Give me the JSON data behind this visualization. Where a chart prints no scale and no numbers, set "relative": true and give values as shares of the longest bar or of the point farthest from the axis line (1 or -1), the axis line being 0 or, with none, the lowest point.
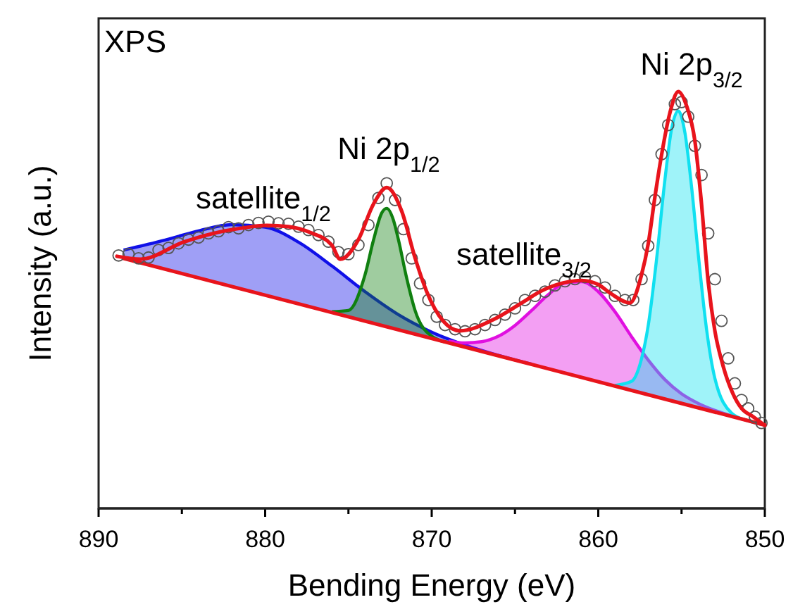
{
  "chart_data": {
    "type": "line",
    "relative": true,
    "xlabel": "Bending Energy (eV)",
    "ylabel": "Intensity (a.u.)",
    "xlim": [
      890,
      850
    ],
    "xticks": [
      890,
      {
        "value": 885,
        "label": null
      },
      880,
      {
        "value": 875,
        "label": null
      },
      870,
      {
        "value": 865,
        "label": null
      },
      860,
      {
        "value": 855,
        "label": null
      },
      850
    ],
    "annotations": [
      "XPS",
      "satellite$_{1/2}$",
      "Ni 2p$_{1/2}$",
      "satellite$_{3/2}$",
      "Ni 2p$_{3/2}$"
    ],
    "series": [
      {
        "type": "area",
        "color": "#1010e8",
        "x": [
          888.5,
          886,
          884,
          882,
          880,
          878,
          876,
          874,
          872,
          870,
          867,
          864
        ],
        "values": [
          0.62,
          0.644,
          0.666,
          0.681,
          0.675,
          0.639,
          0.582,
          0.52,
          0.465,
          0.423,
          0.379,
          0.346
        ]
      },
      {
        "type": "area",
        "color": "#108010",
        "x": [
          876,
          875,
          874,
          873.5,
          873,
          872.7,
          872.3,
          872,
          871.5,
          871,
          870,
          869
        ],
        "values": [
          0.472,
          0.475,
          0.561,
          0.643,
          0.709,
          0.72,
          0.692,
          0.645,
          0.552,
          0.475,
          0.413,
          0.398
        ]
      },
      {
        "type": "area",
        "color": "#e010e0",
        "x": [
          869,
          868,
          867,
          866,
          865,
          864,
          863,
          862,
          861,
          860,
          859,
          858,
          857,
          856,
          855,
          854,
          852,
          850
        ],
        "values": [
          0.402,
          0.397,
          0.4,
          0.413,
          0.439,
          0.475,
          0.513,
          0.541,
          0.544,
          0.52,
          0.472,
          0.412,
          0.356,
          0.309,
          0.275,
          0.252,
          0.222,
          0.2
        ]
      },
      {
        "type": "area",
        "color": "#10e0f0",
        "x": [
          859,
          858,
          857.5,
          857,
          856.5,
          856,
          855.6,
          855.2,
          854.8,
          854.4,
          854,
          853.5,
          853,
          852,
          851,
          850
        ],
        "values": [
          0.295,
          0.305,
          0.345,
          0.439,
          0.598,
          0.788,
          0.91,
          0.954,
          0.902,
          0.772,
          0.611,
          0.43,
          0.312,
          0.229,
          0.21,
          0.2
        ]
      },
      {
        "color": "#e8141c",
        "x": [
          888.5,
          850
        ],
        "values": [
          0.6,
          0.2
        ]
      },
      {
        "type": "scatter",
        "marker": "circle",
        "color": "#555555",
        "x": [
          888.8,
          888.2,
          887.6,
          887,
          886.4,
          885.8,
          885.2,
          884.6,
          884,
          883.4,
          882.8,
          882.2,
          881.6,
          881,
          880.4,
          879.8,
          879.2,
          878.6,
          878,
          877.4,
          876.8,
          876.2,
          875.6,
          875,
          874.4,
          873.8,
          873.2,
          872.7,
          872.2,
          871.7,
          871.2,
          870.7,
          870.2,
          869.7,
          869.2,
          868.6,
          868,
          867.4,
          866.8,
          866.2,
          865.6,
          865,
          864.4,
          863.8,
          863.2,
          862.6,
          862,
          861.4,
          860.8,
          860.2,
          859.6,
          859,
          858.4,
          857.9,
          857.4,
          857,
          856.6,
          856.2,
          855.8,
          855.4,
          855,
          854.6,
          854.2,
          853.8,
          853.4,
          853,
          852.6,
          852.2,
          851.8,
          851.4,
          851,
          850.6,
          850.2
        ],
        "values": [
          0.607,
          0.61,
          0.6,
          0.602,
          0.62,
          0.625,
          0.636,
          0.645,
          0.65,
          0.66,
          0.665,
          0.675,
          0.672,
          0.68,
          0.685,
          0.688,
          0.684,
          0.683,
          0.676,
          0.668,
          0.656,
          0.64,
          0.615,
          0.61,
          0.632,
          0.68,
          0.745,
          0.78,
          0.74,
          0.67,
          0.6,
          0.54,
          0.5,
          0.46,
          0.44,
          0.43,
          0.425,
          0.43,
          0.44,
          0.452,
          0.465,
          0.48,
          0.5,
          0.51,
          0.52,
          0.535,
          0.545,
          0.55,
          0.555,
          0.545,
          0.53,
          0.51,
          0.5,
          0.5,
          0.55,
          0.63,
          0.74,
          0.85,
          0.92,
          0.97,
          0.975,
          0.94,
          0.87,
          0.8,
          0.66,
          0.55,
          0.45,
          0.36,
          0.3,
          0.26,
          0.24,
          0.22,
          0.205
        ]
      },
      {
        "color": "#e8141c",
        "x": [
          888.9,
          887.5,
          884.9,
          883.2,
          881.5,
          879.9,
          878.6,
          877.3,
          876,
          875.5,
          874.4,
          873.5,
          872.7,
          871.8,
          871,
          870.3,
          869.3,
          868.3,
          866.3,
          864.6,
          863.5,
          862.1,
          861,
          860,
          859.3,
          858.1,
          857.4,
          857,
          856.6,
          856.2,
          855.7,
          855.2,
          854.7,
          854.2,
          853.8,
          853.4,
          853,
          852.5,
          851.9,
          851.4,
          850.7,
          850
        ],
        "values": [
          0.605,
          0.598,
          0.639,
          0.659,
          0.672,
          0.679,
          0.676,
          0.662,
          0.632,
          0.598,
          0.645,
          0.73,
          0.77,
          0.713,
          0.601,
          0.52,
          0.449,
          0.426,
          0.453,
          0.493,
          0.52,
          0.541,
          0.547,
          0.537,
          0.517,
          0.493,
          0.561,
          0.635,
          0.747,
          0.848,
          0.949,
          1,
          0.966,
          0.882,
          0.73,
          0.544,
          0.426,
          0.341,
          0.274,
          0.24,
          0.22,
          0.199
        ]
      }
    ]
  }
}
